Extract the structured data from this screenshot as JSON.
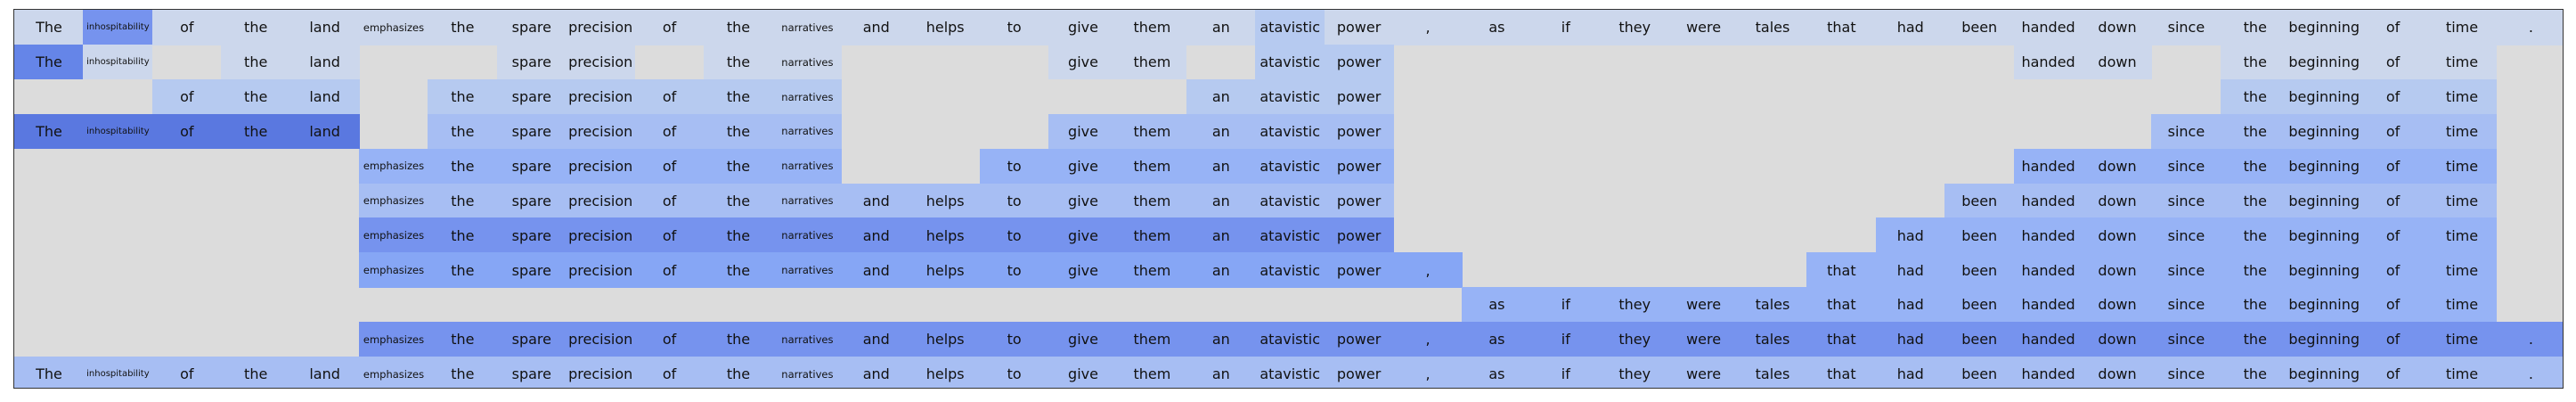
{
  "tokens": [
    "The",
    "inhospitability",
    "of",
    "the",
    "land",
    "emphasizes",
    "the",
    "spare",
    "precision",
    "of",
    "the",
    "narratives",
    "and",
    "helps",
    "to",
    "give",
    "them",
    "an",
    "atavistic",
    "power",
    ",",
    "as",
    "if",
    "they",
    "were",
    "tales",
    "that",
    "had",
    "been",
    "handed",
    "down",
    "since",
    "the",
    "beginning",
    "of",
    "time",
    "."
  ],
  "palette": {
    "0": "#dcdcdc",
    "1": "#ccd7ec",
    "2": "#b6caf0",
    "3": "#a7bef3",
    "4": "#97b3f6",
    "5": "#86a6f5",
    "6": "#7693ee",
    "7": "#6585e8",
    "8": "#5a78e0"
  },
  "rows": [
    {
      "text": [
        0,
        1,
        2,
        3,
        4,
        5,
        6,
        7,
        8,
        9,
        10,
        11,
        12,
        13,
        14,
        15,
        16,
        17,
        18,
        19,
        20,
        21,
        22,
        23,
        24,
        25,
        26,
        27,
        28,
        29,
        30,
        31,
        32,
        33,
        34,
        35,
        36
      ],
      "shade": [
        1,
        6,
        1,
        1,
        1,
        1,
        1,
        1,
        1,
        1,
        1,
        1,
        1,
        1,
        1,
        1,
        1,
        1,
        2,
        1,
        1,
        1,
        1,
        1,
        1,
        1,
        1,
        1,
        1,
        1,
        1,
        1,
        1,
        1,
        1,
        1,
        1
      ]
    },
    {
      "text": [
        0,
        1,
        3,
        4,
        7,
        8,
        10,
        11,
        15,
        16,
        18,
        19,
        29,
        30,
        32,
        33,
        34,
        35
      ],
      "shade": [
        7,
        1,
        0,
        1,
        1,
        0,
        0,
        1,
        1,
        0,
        1,
        1,
        0,
        0,
        0,
        1,
        1,
        0,
        2,
        2,
        0,
        0,
        0,
        0,
        0,
        0,
        0,
        0,
        0,
        1,
        1,
        0,
        1,
        1,
        1,
        1,
        0
      ]
    },
    {
      "text": [
        2,
        3,
        4,
        6,
        7,
        8,
        9,
        10,
        11,
        17,
        18,
        19,
        32,
        33,
        34,
        35
      ],
      "shade": [
        0,
        0,
        2,
        2,
        2,
        0,
        2,
        2,
        2,
        2,
        2,
        2,
        0,
        0,
        0,
        0,
        0,
        2,
        2,
        2,
        0,
        0,
        0,
        0,
        0,
        0,
        0,
        0,
        0,
        0,
        0,
        0,
        2,
        2,
        2,
        2,
        0
      ]
    },
    {
      "text": [
        0,
        1,
        2,
        3,
        4,
        6,
        7,
        8,
        9,
        10,
        11,
        15,
        16,
        17,
        18,
        19,
        31,
        32,
        33,
        34,
        35
      ],
      "shade": [
        8,
        8,
        8,
        8,
        8,
        0,
        3,
        3,
        3,
        3,
        3,
        3,
        0,
        0,
        0,
        3,
        3,
        3,
        3,
        3,
        0,
        0,
        0,
        0,
        0,
        0,
        0,
        0,
        0,
        0,
        0,
        3,
        3,
        3,
        3,
        3,
        0
      ]
    },
    {
      "text": [
        5,
        6,
        7,
        8,
        9,
        10,
        11,
        14,
        15,
        16,
        17,
        18,
        19,
        29,
        30,
        31,
        32,
        33,
        34,
        35
      ],
      "shade": [
        0,
        0,
        0,
        0,
        0,
        4,
        4,
        4,
        4,
        4,
        4,
        4,
        0,
        0,
        4,
        4,
        4,
        4,
        4,
        4,
        0,
        0,
        0,
        0,
        0,
        0,
        0,
        0,
        0,
        4,
        4,
        4,
        4,
        4,
        4,
        4,
        0
      ]
    },
    {
      "text": [
        5,
        6,
        7,
        8,
        9,
        10,
        11,
        12,
        13,
        14,
        15,
        16,
        17,
        18,
        19,
        28,
        29,
        30,
        31,
        32,
        33,
        34,
        35
      ],
      "shade": [
        0,
        0,
        0,
        0,
        0,
        3,
        3,
        3,
        3,
        3,
        3,
        3,
        3,
        3,
        3,
        3,
        3,
        3,
        3,
        3,
        0,
        0,
        0,
        0,
        0,
        0,
        0,
        0,
        3,
        3,
        3,
        3,
        3,
        3,
        3,
        3,
        0
      ]
    },
    {
      "text": [
        5,
        6,
        7,
        8,
        9,
        10,
        11,
        12,
        13,
        14,
        15,
        16,
        17,
        18,
        19,
        27,
        28,
        29,
        30,
        31,
        32,
        33,
        34,
        35
      ],
      "shade": [
        0,
        0,
        0,
        0,
        0,
        6,
        6,
        6,
        6,
        6,
        6,
        6,
        6,
        6,
        6,
        6,
        6,
        6,
        6,
        6,
        0,
        0,
        0,
        0,
        0,
        0,
        0,
        4,
        4,
        4,
        4,
        4,
        4,
        4,
        4,
        4,
        0
      ]
    },
    {
      "text": [
        5,
        6,
        7,
        8,
        9,
        10,
        11,
        12,
        13,
        14,
        15,
        16,
        17,
        18,
        19,
        20,
        26,
        27,
        28,
        29,
        30,
        31,
        32,
        33,
        34,
        35
      ],
      "shade": [
        0,
        0,
        0,
        0,
        0,
        5,
        5,
        5,
        5,
        5,
        5,
        5,
        5,
        5,
        5,
        5,
        5,
        5,
        5,
        5,
        5,
        0,
        0,
        0,
        0,
        0,
        4,
        4,
        4,
        4,
        4,
        4,
        4,
        4,
        4,
        4,
        0
      ]
    },
    {
      "text": [
        21,
        22,
        23,
        24,
        25,
        26,
        27,
        28,
        29,
        30,
        31,
        32,
        33,
        34,
        35
      ],
      "shade": [
        0,
        0,
        0,
        0,
        0,
        0,
        0,
        0,
        0,
        0,
        0,
        0,
        0,
        0,
        0,
        0,
        0,
        0,
        0,
        0,
        0,
        4,
        4,
        4,
        4,
        4,
        4,
        4,
        4,
        4,
        4,
        4,
        4,
        4,
        4,
        4,
        0
      ]
    },
    {
      "text": [
        5,
        6,
        7,
        8,
        9,
        10,
        11,
        12,
        13,
        14,
        15,
        16,
        17,
        18,
        19,
        20,
        21,
        22,
        23,
        24,
        25,
        26,
        27,
        28,
        29,
        30,
        31,
        32,
        33,
        34,
        35,
        36
      ],
      "shade": [
        0,
        0,
        0,
        0,
        0,
        6,
        6,
        6,
        6,
        6,
        6,
        6,
        6,
        6,
        6,
        6,
        6,
        6,
        6,
        6,
        6,
        6,
        6,
        6,
        6,
        6,
        6,
        6,
        6,
        6,
        6,
        6,
        6,
        6,
        6,
        6,
        6
      ]
    },
    {
      "text": [
        0,
        1,
        2,
        3,
        4,
        5,
        6,
        7,
        8,
        9,
        10,
        11,
        12,
        13,
        14,
        15,
        16,
        17,
        18,
        19,
        20,
        21,
        22,
        23,
        24,
        25,
        26,
        27,
        28,
        29,
        30,
        31,
        32,
        33,
        34,
        35,
        36
      ],
      "shade": [
        3,
        3,
        3,
        3,
        3,
        3,
        3,
        3,
        3,
        3,
        3,
        3,
        3,
        3,
        3,
        3,
        3,
        3,
        3,
        3,
        3,
        3,
        3,
        3,
        3,
        3,
        3,
        3,
        3,
        3,
        3,
        3,
        3,
        3,
        3,
        3,
        3
      ]
    }
  ]
}
